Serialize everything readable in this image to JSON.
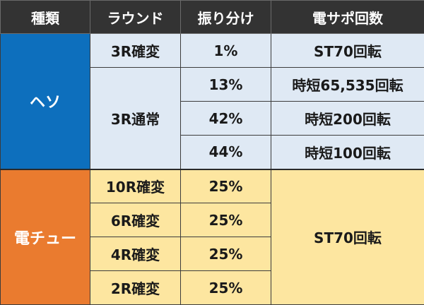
{
  "header": {
    "type": "種類",
    "round": "ラウンド",
    "allocation": "振り分け",
    "densapo": "電サポ回数"
  },
  "groups": {
    "heso": {
      "label": "ヘソ",
      "rows": [
        {
          "round": "3R確変",
          "allocation": "1%",
          "densapo": "ST70回転"
        },
        {
          "round": "3R通常",
          "allocation": "13%",
          "densapo": "時短65,535回転"
        },
        {
          "allocation": "42%",
          "densapo": "時短200回転"
        },
        {
          "allocation": "44%",
          "densapo": "時短100回転"
        }
      ]
    },
    "denchu": {
      "label": "電チュー",
      "densapo": "ST70回転",
      "rows": [
        {
          "round": "10R確変",
          "allocation": "25%"
        },
        {
          "round": "6R確変",
          "allocation": "25%"
        },
        {
          "round": "4R確変",
          "allocation": "25%"
        },
        {
          "round": "2R確変",
          "allocation": "25%"
        }
      ]
    }
  },
  "colors": {
    "header_bg": "#333333",
    "heso_bg": "#0d6fbd",
    "denchu_bg": "#ea7b2f",
    "heso_cell_bg": "#dfe9f4",
    "denchu_cell_bg": "#fde6a0"
  }
}
